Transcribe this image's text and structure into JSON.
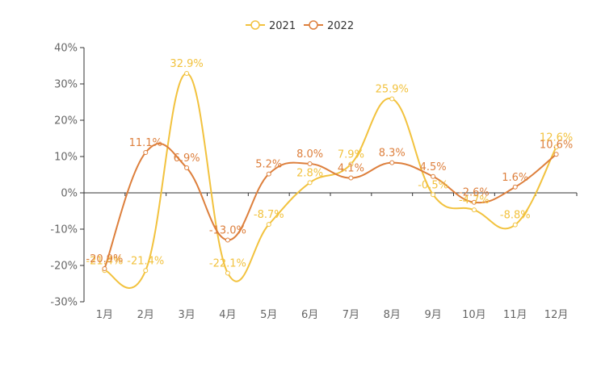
{
  "chart_data": {
    "type": "line",
    "smooth": true,
    "categories": [
      "1月",
      "2月",
      "3月",
      "4月",
      "5月",
      "6月",
      "7月",
      "8月",
      "9月",
      "10月",
      "11月",
      "12月"
    ],
    "series": [
      {
        "name": "2021",
        "color": "#f2c23e",
        "values": [
          -21.4,
          -21.4,
          32.9,
          -22.1,
          -8.7,
          2.8,
          7.9,
          25.9,
          -0.5,
          -4.7,
          -8.8,
          12.6
        ],
        "labels": [
          "-21.4%",
          "-21.4%",
          "32.9%",
          "-22.1%",
          "-8.7%",
          "2.8%",
          "7.9%",
          "25.9%",
          "-0.5%",
          "-4.7%",
          "-8.8%",
          "12.6%"
        ]
      },
      {
        "name": "2022",
        "color": "#dd7f3c",
        "values": [
          -20.9,
          11.1,
          6.9,
          -13.0,
          5.2,
          8.0,
          4.1,
          8.3,
          4.5,
          -2.6,
          1.6,
          10.6
        ],
        "labels": [
          "-20.9%",
          "11.1%",
          "6.9%",
          "-13.0%",
          "5.2%",
          "8.0%",
          "4.1%",
          "8.3%",
          "4.5%",
          "-2.6%",
          "1.6%",
          "10.6%"
        ]
      }
    ],
    "ylim": [
      -30,
      40
    ],
    "yticks": [
      -30,
      -20,
      -10,
      0,
      10,
      20,
      30,
      40
    ],
    "ytick_labels": [
      "-30%",
      "-20%",
      "-10%",
      "0%",
      "10%",
      "20%",
      "30%",
      "40%"
    ],
    "legend_position": "top-center",
    "grid": false
  }
}
